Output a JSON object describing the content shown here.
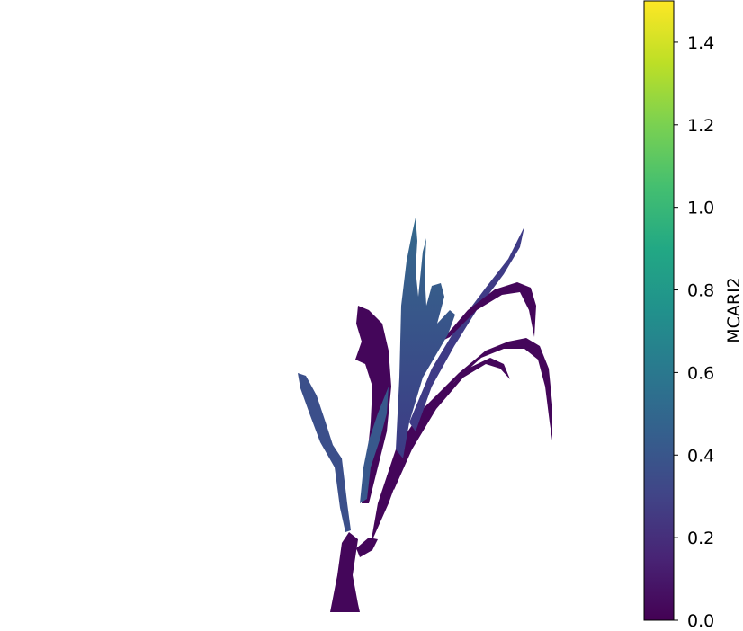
{
  "chart_data": {
    "type": "heatmap",
    "title": "",
    "xlabel": "",
    "ylabel": "",
    "axes_visible": false,
    "image_description_values": "Plant canopy image colored by MCARI2 index; background masked (white).",
    "colormap": "viridis",
    "colorbar": {
      "label": "MCARI2",
      "orientation": "vertical",
      "position": "right",
      "vmin": 0.0,
      "vmax": 1.5,
      "ticks": [
        0.0,
        0.2,
        0.4,
        0.6,
        0.8,
        1.0,
        1.2,
        1.4
      ],
      "tick_labels": [
        "0.0",
        "0.2",
        "0.4",
        "0.6",
        "0.8",
        "1.0",
        "1.2",
        "1.4"
      ]
    },
    "plant_value_range": [
      0.0,
      0.55
    ],
    "dominant_values": {
      "stem_and_lower_leaves": 0.03,
      "upper_leaves": 0.45
    },
    "colors": {
      "viridis_0.0": "#440154",
      "viridis_0.25": "#3b528b",
      "viridis_0.5": "#21918c",
      "viridis_0.75": "#5ec962",
      "viridis_1.0": "#fde725"
    }
  }
}
